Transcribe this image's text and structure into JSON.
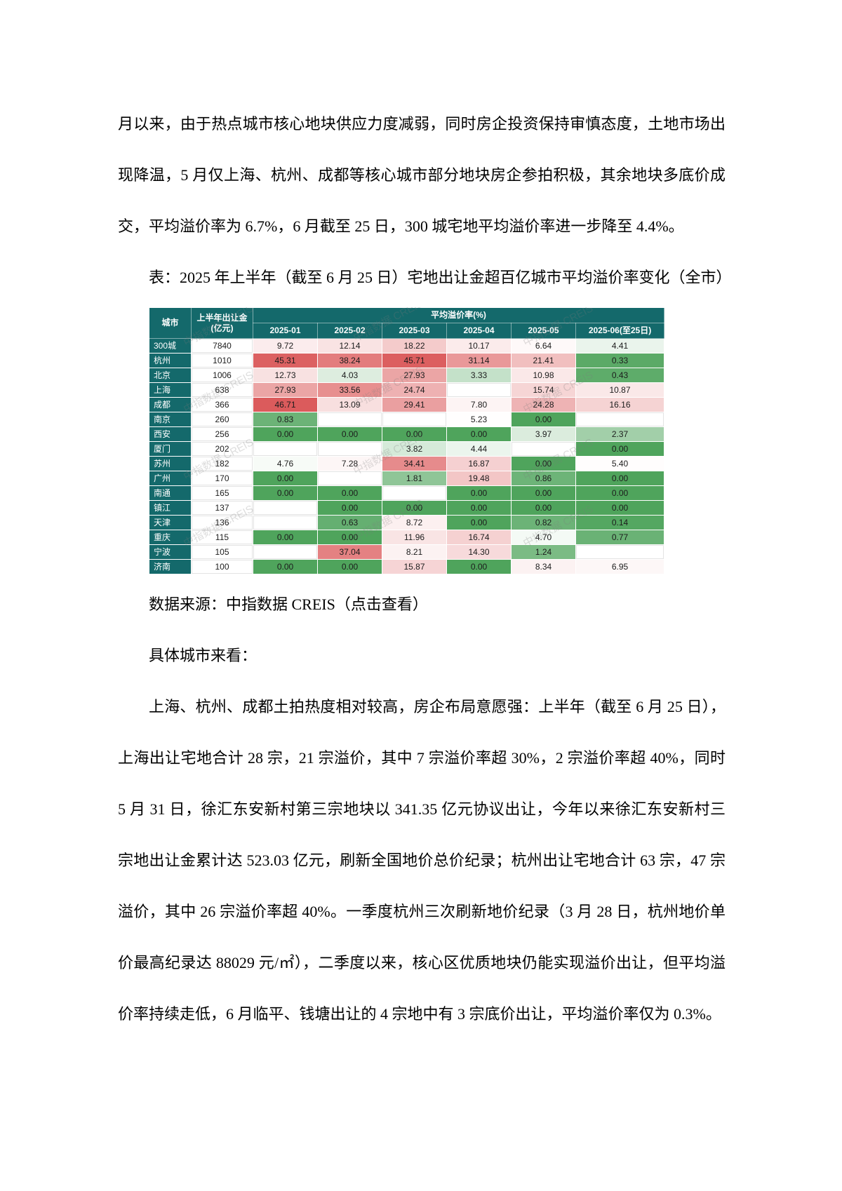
{
  "document": {
    "p1": "月以来，由于热点城市核心地块供应力度减弱，同时房企投资保持审慎态度，土地市场出现降温，5 月仅上海、杭州、成都等核心城市部分地块房企参拍积极，其余地块多底价成交，平均溢价率为 6.7%，6 月截至 25 日，300 城宅地平均溢价率进一步降至 4.4%。",
    "table_caption": "表：2025 年上半年（截至 6 月 25 日）宅地出让金超百亿城市平均溢价率变化（全市）",
    "source_prefix": "数据来源：中指数据 CREIS",
    "source_link": "（点击查看）",
    "p2": "具体城市来看：",
    "p3": "上海、杭州、成都土拍热度相对较高，房企布局意愿强：上半年（截至 6 月 25 日），上海出让宅地合计 28 宗，21 宗溢价，其中 7 宗溢价率超 30%，2 宗溢价率超 40%，同时 5 月 31 日，徐汇东安新村第三宗地块以 341.35 亿元协议出让，今年以来徐汇东安新村三宗地出让金累计达 523.03 亿元，刷新全国地价总价纪录；杭州出让宅地合计 63 宗，47 宗溢价，其中 26 宗溢价率超 40%。一季度杭州三次刷新地价纪录（3 月 28 日，杭州地价单价最高纪录达 88029 元/㎡），二季度以来，核心区优质地块仍能实现溢价出让，但平均溢价率持续走低，6 月临平、钱塘出让的 4 宗地中有 3 宗底价出让，平均溢价率仅为 0.3%。"
  },
  "chart_data": {
    "type": "heatmap",
    "title": "2025年上半年（截至6月25日）宅地出让金超百亿城市平均溢价率变化（全市）",
    "headers": {
      "city": "城市",
      "amount": "上半年出让金(亿元)",
      "group": "平均溢价率(%)"
    },
    "months": [
      "2025-01",
      "2025-02",
      "2025-03",
      "2025-04",
      "2025-05",
      "2025-06(至25日)"
    ],
    "rows": [
      {
        "city": "300城",
        "amount": "7840",
        "values": [
          "9.72",
          "12.14",
          "18.22",
          "10.17",
          "6.64",
          "4.41"
        ]
      },
      {
        "city": "杭州",
        "amount": "1010",
        "values": [
          "45.31",
          "38.24",
          "45.71",
          "31.14",
          "21.41",
          "0.33"
        ]
      },
      {
        "city": "北京",
        "amount": "1006",
        "values": [
          "12.73",
          "4.03",
          "27.93",
          "3.33",
          "10.98",
          "0.43"
        ]
      },
      {
        "city": "上海",
        "amount": "638",
        "values": [
          "27.93",
          "33.56",
          "24.74",
          "",
          "15.74",
          "10.87"
        ]
      },
      {
        "city": "成都",
        "amount": "366",
        "values": [
          "46.71",
          "13.09",
          "29.41",
          "7.80",
          "24.28",
          "16.16"
        ]
      },
      {
        "city": "南京",
        "amount": "260",
        "values": [
          "0.83",
          "",
          "",
          "5.23",
          "0.00",
          ""
        ]
      },
      {
        "city": "西安",
        "amount": "256",
        "values": [
          "0.00",
          "0.00",
          "0.00",
          "0.00",
          "3.97",
          "2.37"
        ]
      },
      {
        "city": "厦门",
        "amount": "202",
        "values": [
          "",
          "",
          "3.82",
          "4.44",
          "",
          "0.00"
        ]
      },
      {
        "city": "苏州",
        "amount": "182",
        "values": [
          "4.76",
          "7.28",
          "34.41",
          "16.87",
          "0.00",
          "5.40"
        ]
      },
      {
        "city": "广州",
        "amount": "170",
        "values": [
          "0.00",
          "",
          "1.81",
          "19.48",
          "0.86",
          "0.00"
        ]
      },
      {
        "city": "南通",
        "amount": "165",
        "values": [
          "0.00",
          "0.00",
          "",
          "0.00",
          "0.00",
          "0.00"
        ]
      },
      {
        "city": "镇江",
        "amount": "137",
        "values": [
          "",
          "0.00",
          "0.00",
          "0.00",
          "0.00",
          "0.00"
        ]
      },
      {
        "city": "天津",
        "amount": "136",
        "values": [
          "",
          "0.63",
          "8.72",
          "0.00",
          "0.82",
          "0.14"
        ]
      },
      {
        "city": "重庆",
        "amount": "115",
        "values": [
          "0.00",
          "0.00",
          "11.96",
          "16.74",
          "4.70",
          "0.77"
        ]
      },
      {
        "city": "宁波",
        "amount": "105",
        "values": [
          "",
          "37.04",
          "8.21",
          "14.30",
          "1.24",
          ""
        ]
      },
      {
        "city": "济南",
        "amount": "100",
        "values": [
          "0.00",
          "0.00",
          "15.87",
          "0.00",
          "8.34",
          "6.95"
        ]
      }
    ],
    "watermark": "中指数据 CREIS",
    "colors": {
      "header_bg": "#14696b",
      "header_text": "#ffffff",
      "scale_min": "#4fa45c",
      "scale_mid": "#ffffff",
      "scale_max": "#db5a5b",
      "mid_value": 5,
      "max_value": 47
    }
  }
}
